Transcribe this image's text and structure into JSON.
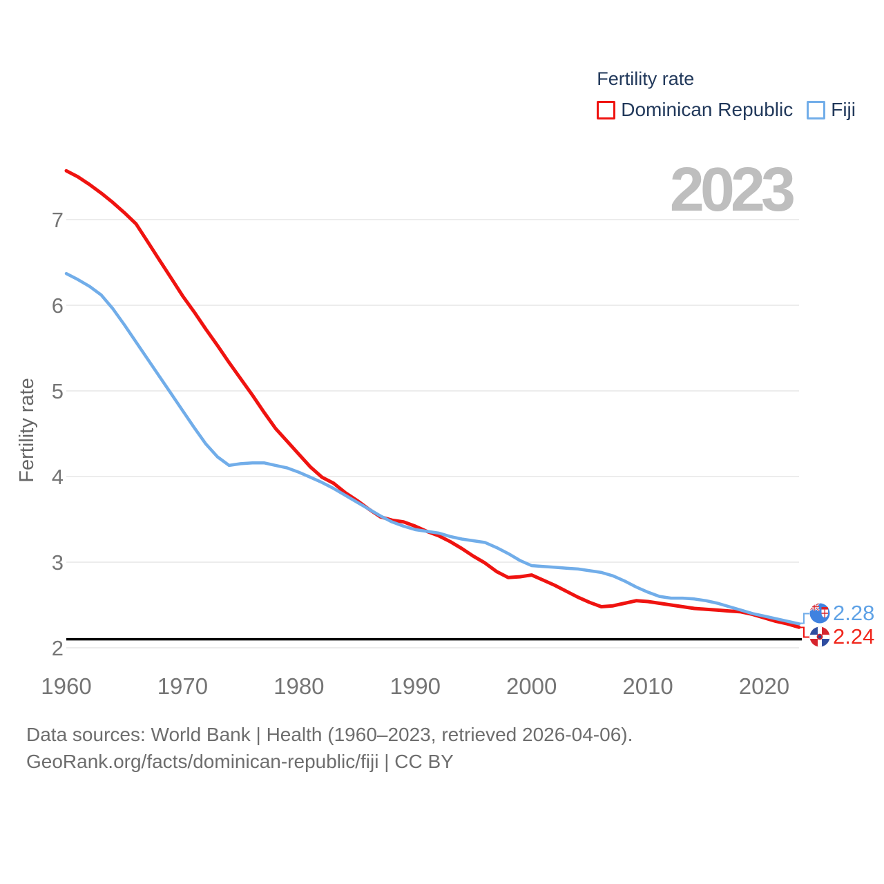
{
  "legend": {
    "title": "Fertility rate",
    "series": [
      {
        "label": "Dominican Republic",
        "color": "#ef1310"
      },
      {
        "label": "Fiji",
        "color": "#71ade9"
      }
    ]
  },
  "watermark": "2023",
  "y_axis": {
    "title": "Fertility rate",
    "ticks": [
      2,
      3,
      4,
      5,
      6,
      7
    ]
  },
  "x_axis": {
    "ticks": [
      1960,
      1970,
      1980,
      1990,
      2000,
      2010,
      2020
    ]
  },
  "reference_line": {
    "value": 2.1,
    "color": "#000000"
  },
  "end_labels": [
    {
      "series": "Fiji",
      "value": "2.28",
      "color": "#5fa2e6",
      "flag": "fiji-flag"
    },
    {
      "series": "Dominican Republic",
      "value": "2.24",
      "color": "#f0271c",
      "flag": "dominican-republic-flag"
    }
  ],
  "footer": {
    "line1": "Data sources: World Bank | Health (1960–2023, retrieved 2026-04-06).",
    "line2": "GeoRank.org/facts/dominican-republic/fiji | CC BY"
  },
  "chart_data": {
    "type": "line",
    "title": "Fertility rate",
    "ylabel": "Fertility rate",
    "ylim": [
      2,
      7.8
    ],
    "xlim": [
      1960,
      2023
    ],
    "grid": true,
    "legend_position": "top-right",
    "reference_line_value": 2.1,
    "x": [
      1960,
      1961,
      1962,
      1963,
      1964,
      1965,
      1966,
      1967,
      1968,
      1969,
      1970,
      1971,
      1972,
      1973,
      1974,
      1975,
      1976,
      1977,
      1978,
      1979,
      1980,
      1981,
      1982,
      1983,
      1984,
      1985,
      1986,
      1987,
      1988,
      1989,
      1990,
      1991,
      1992,
      1993,
      1994,
      1995,
      1996,
      1997,
      1998,
      1999,
      2000,
      2001,
      2002,
      2003,
      2004,
      2005,
      2006,
      2007,
      2008,
      2009,
      2010,
      2011,
      2012,
      2013,
      2014,
      2015,
      2016,
      2017,
      2018,
      2019,
      2020,
      2021,
      2022,
      2023
    ],
    "series": [
      {
        "name": "Dominican Republic",
        "color": "#ef1310",
        "final_value": 2.24,
        "values": [
          7.57,
          7.5,
          7.41,
          7.31,
          7.2,
          7.08,
          6.95,
          6.74,
          6.53,
          6.32,
          6.11,
          5.92,
          5.72,
          5.53,
          5.33,
          5.14,
          4.95,
          4.75,
          4.56,
          4.41,
          4.26,
          4.11,
          3.99,
          3.92,
          3.81,
          3.72,
          3.62,
          3.53,
          3.49,
          3.47,
          3.42,
          3.36,
          3.31,
          3.24,
          3.16,
          3.07,
          2.99,
          2.89,
          2.82,
          2.83,
          2.85,
          2.79,
          2.73,
          2.66,
          2.59,
          2.53,
          2.48,
          2.49,
          2.52,
          2.55,
          2.54,
          2.52,
          2.5,
          2.48,
          2.46,
          2.45,
          2.44,
          2.43,
          2.42,
          2.39,
          2.35,
          2.31,
          2.28,
          2.24
        ]
      },
      {
        "name": "Fiji",
        "color": "#71ade9",
        "final_value": 2.28,
        "values": [
          6.37,
          6.3,
          6.22,
          6.12,
          5.96,
          5.77,
          5.57,
          5.37,
          5.17,
          4.97,
          4.77,
          4.57,
          4.38,
          4.23,
          4.13,
          4.15,
          4.16,
          4.16,
          4.13,
          4.1,
          4.05,
          3.99,
          3.93,
          3.86,
          3.78,
          3.7,
          3.62,
          3.54,
          3.47,
          3.42,
          3.38,
          3.36,
          3.34,
          3.3,
          3.27,
          3.25,
          3.23,
          3.17,
          3.1,
          3.02,
          2.96,
          2.95,
          2.94,
          2.93,
          2.92,
          2.9,
          2.88,
          2.84,
          2.78,
          2.71,
          2.65,
          2.6,
          2.58,
          2.58,
          2.57,
          2.55,
          2.52,
          2.48,
          2.44,
          2.4,
          2.37,
          2.34,
          2.31,
          2.28
        ]
      }
    ]
  }
}
